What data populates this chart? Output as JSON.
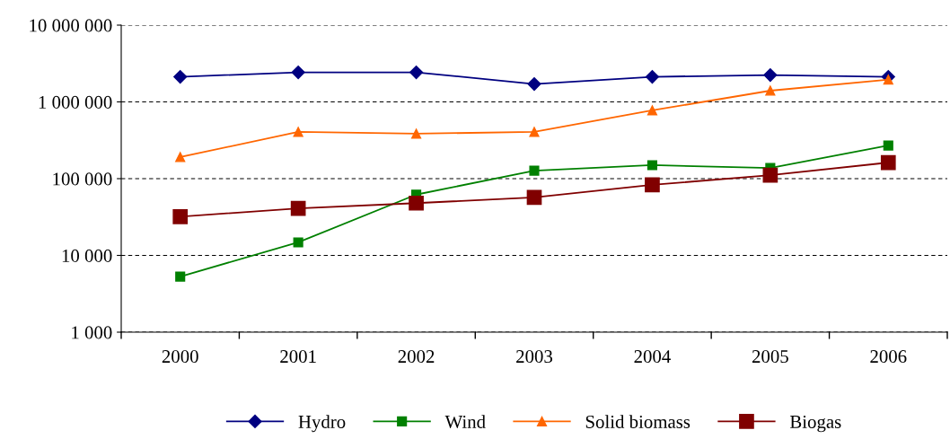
{
  "chart_data": {
    "type": "line",
    "categories": [
      "2000",
      "2001",
      "2002",
      "2003",
      "2004",
      "2005",
      "2006"
    ],
    "series": [
      {
        "name": "Hydro",
        "color": "#000080",
        "marker": "diamond",
        "values": [
          2120000,
          2430000,
          2430000,
          1710000,
          2120000,
          2240000,
          2120000
        ]
      },
      {
        "name": "Wind",
        "color": "#008000",
        "marker": "square",
        "values": [
          5300,
          14800,
          62000,
          127000,
          150000,
          138000,
          270000
        ]
      },
      {
        "name": "Solid biomass",
        "color": "#ff6600",
        "marker": "triangle",
        "values": [
          191000,
          407000,
          385000,
          407000,
          776000,
          1400000,
          1950000
        ]
      },
      {
        "name": "Biogas",
        "color": "#800000",
        "marker": "square",
        "values": [
          32000,
          41000,
          48000,
          57000,
          83000,
          111000,
          162000
        ]
      }
    ],
    "log": true,
    "ylim": [
      1000,
      10000000
    ],
    "yticks": [
      {
        "value": 1000,
        "label": "1 000"
      },
      {
        "value": 10000,
        "label": "10 000"
      },
      {
        "value": 100000,
        "label": "100 000"
      },
      {
        "value": 1000000,
        "label": "1 000 000"
      },
      {
        "value": 10000000,
        "label": "10 000 000"
      }
    ],
    "grid": "y",
    "legend": "bottom"
  }
}
